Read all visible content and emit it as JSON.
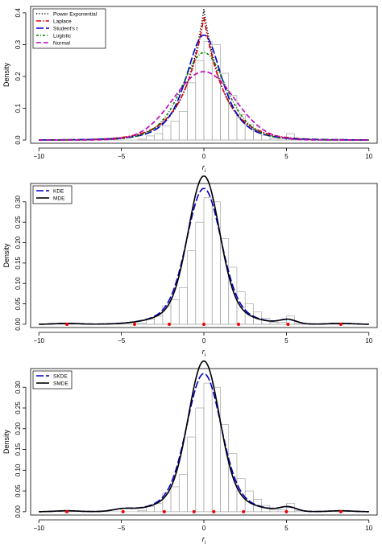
{
  "chart_data": [
    {
      "type": "line",
      "xlabel": "r",
      "xlabel_subscript": "i",
      "ylabel": "Density",
      "xlim": [
        -10.5,
        10.5
      ],
      "ylim": [
        -0.01,
        0.42
      ],
      "xticks": [
        -10,
        -5,
        0,
        5,
        10
      ],
      "xtick_labels": [
        "−10",
        "−5",
        "0",
        "5",
        "10"
      ],
      "yticks": [
        0.0,
        0.1,
        0.2,
        0.3,
        0.4
      ],
      "ytick_labels": [
        "0.0",
        "0.1",
        "0.2",
        "0.3",
        "0.4"
      ],
      "legend_position": "top-left",
      "histogram": {
        "bin_edges": [
          -10,
          -9.5,
          -9,
          -8.5,
          -8,
          -7.5,
          -7,
          -6.5,
          -6,
          -5.5,
          -5,
          -4.5,
          -4,
          -3.5,
          -3,
          -2.5,
          -2,
          -1.5,
          -1,
          -0.5,
          0,
          0.5,
          1,
          1.5,
          2,
          2.5,
          3,
          3.5,
          4,
          4.5,
          5,
          5.5,
          6,
          6.5,
          7,
          7.5,
          8,
          8.5,
          9,
          9.5,
          10
        ],
        "densities": [
          0,
          0,
          0,
          0.003,
          0,
          0,
          0,
          0,
          0,
          0,
          0,
          0,
          0.003,
          0.013,
          0.02,
          0.045,
          0.06,
          0.09,
          0.18,
          0.25,
          0.31,
          0.3,
          0.21,
          0.14,
          0.08,
          0.05,
          0.03,
          0.015,
          0.005,
          0.005,
          0.02,
          0.003,
          0,
          0,
          0,
          0,
          0.003,
          0,
          0,
          0
        ]
      },
      "series": [
        {
          "name": "Power Exponential",
          "color": "#000000",
          "dash": "dotted",
          "family": "laplace",
          "peak": 0.41,
          "scale": 1.22
        },
        {
          "name": "Laplace",
          "color": "#dd0000",
          "dash": "dashdot",
          "family": "laplace",
          "peak": 0.385,
          "scale": 1.3
        },
        {
          "name": "Student's t",
          "color": "#0000cc",
          "dash": "longdash",
          "family": "student",
          "peak": 0.33,
          "scale": 1.15,
          "df": 3
        },
        {
          "name": "Logistic",
          "color": "#007700",
          "dash": "dashdot2",
          "family": "logistic",
          "peak": 0.275,
          "scale": 0.91
        },
        {
          "name": "Normal",
          "color": "#bb00bb",
          "dash": "dashed",
          "family": "normal",
          "peak": 0.215,
          "scale": 1.85
        }
      ]
    },
    {
      "type": "line",
      "xlabel": "r",
      "xlabel_subscript": "i",
      "ylabel": "Density",
      "xlim": [
        -10.5,
        10.5
      ],
      "ylim": [
        -0.008,
        0.345
      ],
      "xticks": [
        -10,
        -5,
        0,
        5,
        10
      ],
      "xtick_labels": [
        "−10",
        "−5",
        "0",
        "5",
        "10"
      ],
      "yticks": [
        0.0,
        0.05,
        0.1,
        0.15,
        0.2,
        0.25,
        0.3
      ],
      "ytick_labels": [
        "0.00",
        "0.05",
        "0.10",
        "0.15",
        "0.20",
        "0.25",
        "0.30"
      ],
      "legend_position": "top-left",
      "histogram": {
        "bin_edges": [
          -10,
          -9.5,
          -9,
          -8.5,
          -8,
          -7.5,
          -7,
          -6.5,
          -6,
          -5.5,
          -5,
          -4.5,
          -4,
          -3.5,
          -3,
          -2.5,
          -2,
          -1.5,
          -1,
          -0.5,
          0,
          0.5,
          1,
          1.5,
          2,
          2.5,
          3,
          3.5,
          4,
          4.5,
          5,
          5.5,
          6,
          6.5,
          7,
          7.5,
          8,
          8.5,
          9,
          9.5,
          10
        ],
        "densities": [
          0,
          0,
          0,
          0.003,
          0,
          0,
          0,
          0,
          0,
          0,
          0,
          0,
          0.003,
          0.013,
          0.02,
          0.045,
          0.06,
          0.09,
          0.18,
          0.25,
          0.31,
          0.3,
          0.21,
          0.14,
          0.08,
          0.05,
          0.03,
          0.015,
          0.005,
          0.005,
          0.02,
          0.003,
          0,
          0,
          0,
          0,
          0.003,
          0,
          0,
          0
        ]
      },
      "series": [
        {
          "name": "KDE",
          "color": "#0000cc",
          "dash": "longdash",
          "kind": "mixture",
          "components": [
            {
              "m": 0,
              "s": 1.0,
              "w": 0.72
            },
            {
              "m": 0,
              "s": 2.1,
              "w": 0.24
            },
            {
              "m": 5.1,
              "s": 0.5,
              "w": 0.012
            },
            {
              "m": -8.3,
              "s": 0.7,
              "w": 0.004
            },
            {
              "m": 8.3,
              "s": 0.7,
              "w": 0.004
            }
          ]
        },
        {
          "name": "MDE",
          "color": "#000000",
          "dash": "solid",
          "kind": "mixture",
          "components": [
            {
              "m": 0,
              "s": 0.92,
              "w": 0.73
            },
            {
              "m": 0,
              "s": 2.05,
              "w": 0.24
            },
            {
              "m": 5.1,
              "s": 0.5,
              "w": 0.013
            },
            {
              "m": -8.3,
              "s": 0.7,
              "w": 0.004
            },
            {
              "m": 8.3,
              "s": 0.7,
              "w": 0.004
            }
          ]
        }
      ],
      "points": [
        -8.3,
        -4.2,
        -2.1,
        0,
        2.1,
        5.1,
        8.3
      ]
    },
    {
      "type": "line",
      "xlabel": "r",
      "xlabel_subscript": "i",
      "ylabel": "Density",
      "xlim": [
        -10.5,
        10.5
      ],
      "ylim": [
        -0.008,
        0.345
      ],
      "xticks": [
        -10,
        -5,
        0,
        5,
        10
      ],
      "xtick_labels": [
        "−10",
        "−5",
        "0",
        "5",
        "10"
      ],
      "yticks": [
        0.0,
        0.05,
        0.1,
        0.15,
        0.2,
        0.25,
        0.3
      ],
      "ytick_labels": [
        "0.00",
        "0.05",
        "0.10",
        "0.15",
        "0.20",
        "0.25",
        "0.30"
      ],
      "legend_position": "top-left",
      "histogram": {
        "bin_edges": [
          -10,
          -9.5,
          -9,
          -8.5,
          -8,
          -7.5,
          -7,
          -6.5,
          -6,
          -5.5,
          -5,
          -4.5,
          -4,
          -3.5,
          -3,
          -2.5,
          -2,
          -1.5,
          -1,
          -0.5,
          0,
          0.5,
          1,
          1.5,
          2,
          2.5,
          3,
          3.5,
          4,
          4.5,
          5,
          5.5,
          6,
          6.5,
          7,
          7.5,
          8,
          8.5,
          9,
          9.5,
          10
        ],
        "densities": [
          0,
          0,
          0,
          0.003,
          0,
          0,
          0,
          0,
          0,
          0,
          0,
          0,
          0.003,
          0.013,
          0.02,
          0.045,
          0.06,
          0.09,
          0.18,
          0.25,
          0.31,
          0.3,
          0.21,
          0.14,
          0.08,
          0.05,
          0.03,
          0.015,
          0.005,
          0.005,
          0.02,
          0.003,
          0,
          0,
          0,
          0,
          0.003,
          0,
          0,
          0
        ]
      },
      "series": [
        {
          "name": "SKDE",
          "color": "#0000cc",
          "dash": "longdash",
          "kind": "mixture",
          "components": [
            {
              "m": 0,
              "s": 1.0,
              "w": 0.72
            },
            {
              "m": 0,
              "s": 2.1,
              "w": 0.24
            },
            {
              "m": 5.1,
              "s": 0.5,
              "w": 0.012
            },
            {
              "m": -4.9,
              "s": 0.6,
              "w": 0.008
            },
            {
              "m": -8.3,
              "s": 0.7,
              "w": 0.004
            },
            {
              "m": 8.3,
              "s": 0.7,
              "w": 0.004
            }
          ]
        },
        {
          "name": "SMDE",
          "color": "#000000",
          "dash": "solid",
          "kind": "mixture",
          "components": [
            {
              "m": 0,
              "s": 0.92,
              "w": 0.73
            },
            {
              "m": 0,
              "s": 2.05,
              "w": 0.24
            },
            {
              "m": 5.1,
              "s": 0.5,
              "w": 0.013
            },
            {
              "m": -4.9,
              "s": 0.6,
              "w": 0.008
            },
            {
              "m": -8.3,
              "s": 0.7,
              "w": 0.004
            },
            {
              "m": 8.3,
              "s": 0.7,
              "w": 0.004
            }
          ]
        }
      ],
      "points": [
        -8.3,
        -4.9,
        -2.4,
        -0.6,
        0.6,
        2.4,
        5.0,
        8.3
      ]
    }
  ]
}
